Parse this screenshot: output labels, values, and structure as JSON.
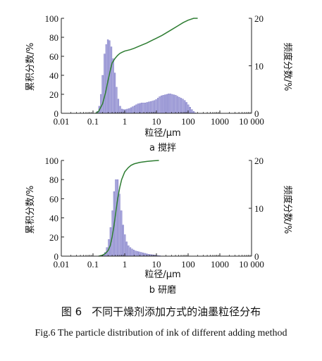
{
  "chart_data": [
    {
      "type": "bar",
      "panel_label": "a 搅拌",
      "xlabel": "粒径/μm",
      "ylabel_left": "累积分数/%",
      "ylabel_right": "频度分数/%",
      "x_scale": "log",
      "xlim": [
        0.01,
        10000
      ],
      "x_ticks": [
        "0.01",
        "0.1",
        "1",
        "10",
        "100",
        "1000",
        "10 000"
      ],
      "ylim_left": [
        0,
        100
      ],
      "y_ticks_left": [
        "0",
        "20",
        "40",
        "60",
        "80",
        "100"
      ],
      "ylim_right": [
        0,
        20
      ],
      "y_ticks_right": [
        "0",
        "10",
        "20"
      ],
      "series": [
        {
          "axis": "right",
          "kind": "histogram",
          "color": "#a8a6dc",
          "x": [
            0.13,
            0.15,
            0.17,
            0.19,
            0.22,
            0.25,
            0.28,
            0.32,
            0.36,
            0.41,
            0.47,
            0.53,
            0.6,
            0.68,
            0.78,
            0.89,
            1.0,
            1.15,
            1.3,
            1.5,
            1.7,
            1.95,
            2.2,
            2.5,
            2.9,
            3.3,
            3.7,
            4.2,
            4.8,
            5.5,
            6.3,
            7.2,
            8.2,
            9.3,
            10.6,
            12,
            13.7,
            15.6,
            17.8,
            20.3,
            23,
            26,
            30,
            34,
            39,
            44,
            50,
            57,
            65,
            74,
            85,
            97,
            110,
            125,
            143,
            163
          ],
          "values": [
            0.4,
            1.5,
            4.0,
            8.0,
            12.5,
            14.5,
            15.5,
            15.3,
            14.0,
            11.5,
            8.5,
            5.5,
            3.0,
            1.5,
            0.9,
            0.8,
            0.8,
            0.9,
            1.0,
            1.2,
            1.4,
            1.6,
            1.8,
            2.0,
            2.1,
            2.2,
            2.2,
            2.2,
            2.3,
            2.4,
            2.5,
            2.6,
            2.7,
            2.9,
            3.2,
            3.5,
            3.7,
            3.8,
            3.9,
            4.0,
            4.1,
            4.1,
            4.0,
            3.9,
            3.8,
            3.6,
            3.4,
            3.2,
            3.0,
            2.7,
            2.3,
            1.8,
            1.3,
            0.8,
            0.4,
            0.1
          ]
        },
        {
          "axis": "left",
          "kind": "cumulative",
          "color": "#2e7d32",
          "x": [
            0.12,
            0.15,
            0.2,
            0.25,
            0.3,
            0.35,
            0.4,
            0.5,
            0.6,
            0.7,
            0.8,
            1.0,
            1.5,
            2,
            3,
            5,
            7,
            10,
            15,
            20,
            30,
            50,
            70,
            100,
            150,
            200
          ],
          "values": [
            0,
            2,
            10,
            22,
            35,
            45,
            53,
            58,
            61,
            63,
            64,
            65.5,
            67,
            68.5,
            71,
            74,
            76.5,
            79,
            82,
            84.5,
            88,
            92.5,
            95.5,
            98,
            100,
            100
          ]
        }
      ]
    },
    {
      "type": "bar",
      "panel_label": "b 研磨",
      "xlabel": "粒径/μm",
      "ylabel_left": "累积分数/%",
      "ylabel_right": "频度分数/%",
      "x_scale": "log",
      "xlim": [
        0.01,
        10000
      ],
      "x_ticks": [
        "0.01",
        "0.1",
        "1",
        "10",
        "100",
        "1000",
        "10 000"
      ],
      "ylim_left": [
        0,
        100
      ],
      "y_ticks_left": [
        "0",
        "20",
        "40",
        "60",
        "80",
        "100"
      ],
      "ylim_right": [
        0,
        20
      ],
      "y_ticks_right": [
        "0",
        "10",
        "20"
      ],
      "series": [
        {
          "axis": "right",
          "kind": "histogram",
          "color": "#a8a6dc",
          "x": [
            0.2,
            0.23,
            0.26,
            0.3,
            0.34,
            0.39,
            0.44,
            0.5,
            0.57,
            0.65,
            0.74,
            0.85,
            0.97,
            1.1,
            1.25,
            1.43,
            1.63,
            1.86,
            2.1,
            2.4,
            2.75,
            3.1,
            3.6,
            4.1,
            4.7,
            5.4,
            6.2,
            7.1,
            8.1,
            9.3,
            10.6,
            12.1
          ],
          "values": [
            0.3,
            0.8,
            1.8,
            3.5,
            6.0,
            9.5,
            13.5,
            16.0,
            16.0,
            13.0,
            9.5,
            6.5,
            4.5,
            3.0,
            2.2,
            1.8,
            1.5,
            1.3,
            1.1,
            1.0,
            0.9,
            0.8,
            0.7,
            0.6,
            0.5,
            0.4,
            0.35,
            0.3,
            0.25,
            0.2,
            0.15,
            0.1
          ]
        },
        {
          "axis": "left",
          "kind": "cumulative",
          "color": "#2e7d32",
          "x": [
            0.15,
            0.2,
            0.25,
            0.3,
            0.35,
            0.4,
            0.45,
            0.5,
            0.55,
            0.6,
            0.7,
            0.8,
            1.0,
            1.3,
            1.6,
            2.0,
            3,
            5,
            8,
            12
          ],
          "values": [
            0,
            1,
            3,
            6,
            11,
            20,
            30,
            41,
            51,
            60,
            72,
            80,
            88,
            92.5,
            95,
            96.5,
            98,
            99,
            99.6,
            100
          ]
        }
      ]
    }
  ],
  "caption": {
    "cn_number": "图 6",
    "cn_title": "不同干燥剂添加方式的油墨粒径分布",
    "en": "Fig.6 The particle distribution of ink of different adding method"
  }
}
